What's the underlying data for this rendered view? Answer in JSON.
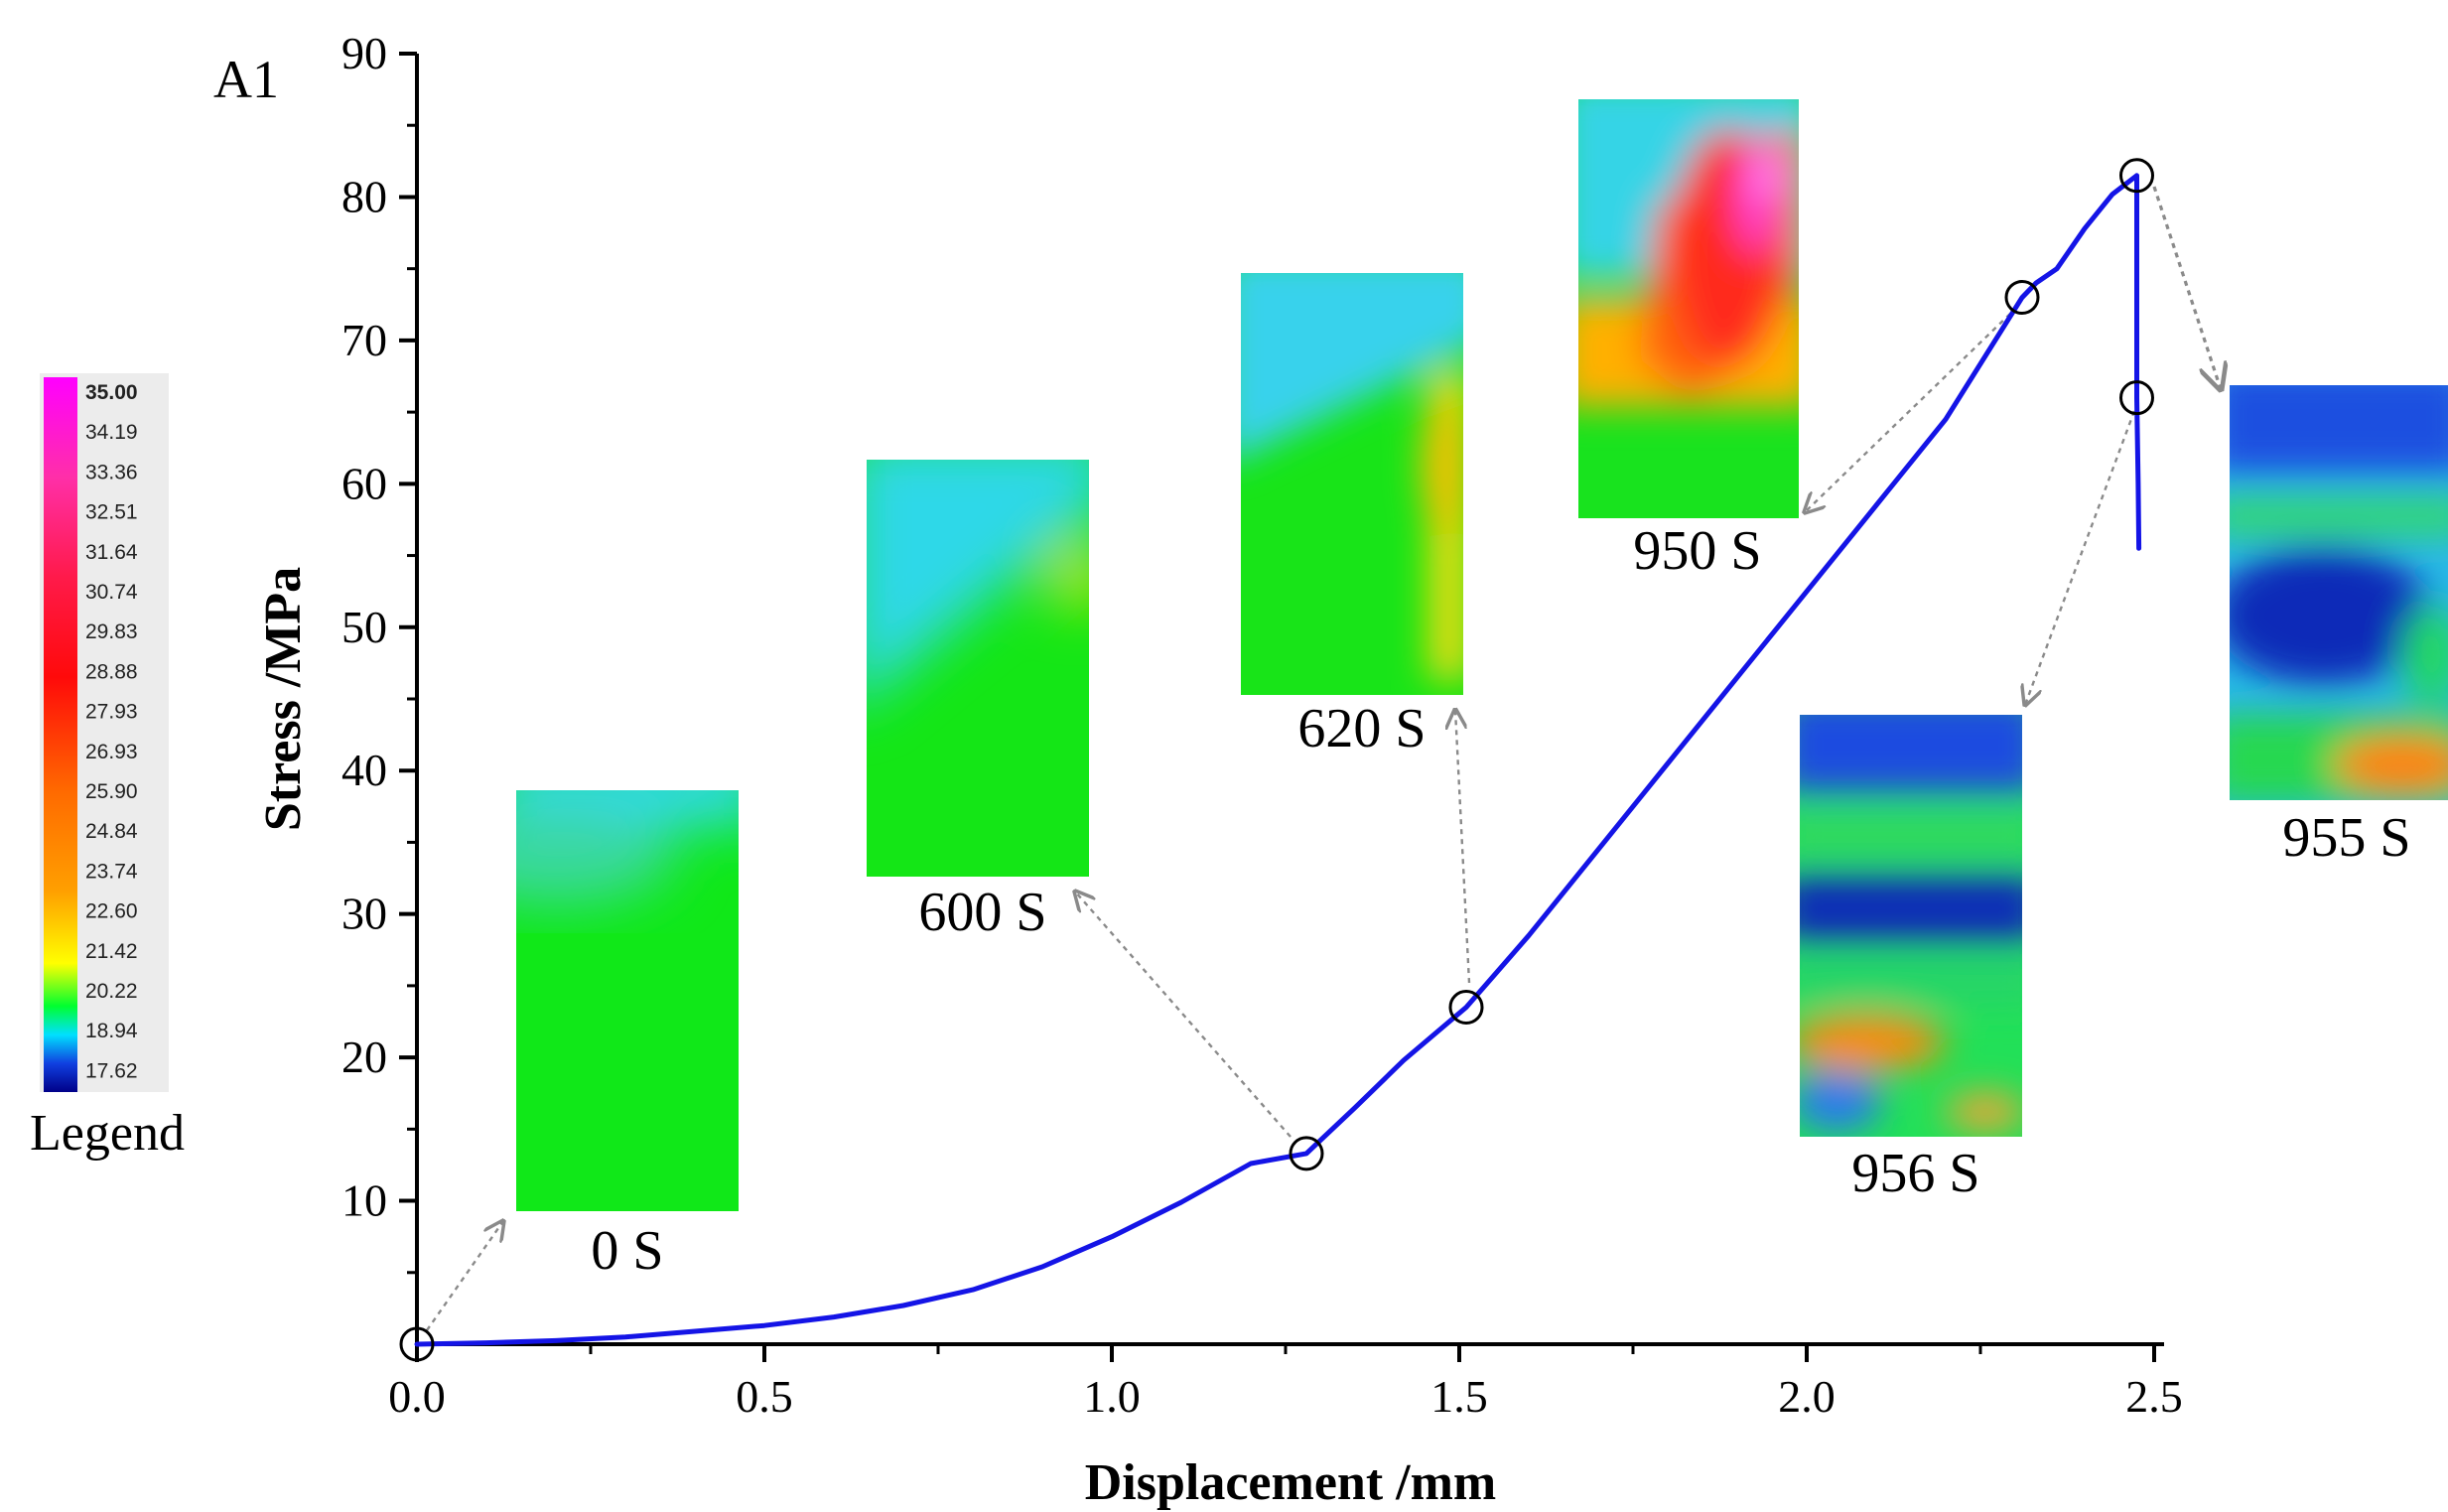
{
  "chart_data": {
    "type": "line",
    "panel_label": "A1",
    "xlabel": "Displacement /mm",
    "ylabel": "Stress /MPa",
    "xlim": [
      0,
      2.5
    ],
    "ylim": [
      0,
      90
    ],
    "xticks": [
      {
        "value": 0.0,
        "label": "0.0"
      },
      {
        "value": 0.5,
        "label": "0.5"
      },
      {
        "value": 1.0,
        "label": "1.0"
      },
      {
        "value": 1.5,
        "label": "1.5"
      },
      {
        "value": 2.0,
        "label": "2.0"
      },
      {
        "value": 2.5,
        "label": "2.5"
      }
    ],
    "yticks": [
      {
        "value": 10,
        "label": "10"
      },
      {
        "value": 20,
        "label": "20"
      },
      {
        "value": 30,
        "label": "30"
      },
      {
        "value": 40,
        "label": "40"
      },
      {
        "value": 50,
        "label": "50"
      },
      {
        "value": 60,
        "label": "60"
      },
      {
        "value": 70,
        "label": "70"
      },
      {
        "value": 80,
        "label": "80"
      },
      {
        "value": 90,
        "label": "90"
      }
    ],
    "series": [
      {
        "color": "#1414e6",
        "x": [
          0.0,
          0.1,
          0.2,
          0.3,
          0.4,
          0.5,
          0.6,
          0.7,
          0.8,
          0.9,
          1.0,
          1.1,
          1.2,
          1.28,
          1.35,
          1.42,
          1.51,
          1.6,
          1.7,
          1.8,
          1.9,
          2.0,
          2.1,
          2.2,
          2.31,
          2.33,
          2.36,
          2.4,
          2.44,
          2.475,
          2.475,
          2.477,
          2.478
        ],
        "y": [
          0.0,
          0.1,
          0.25,
          0.5,
          0.9,
          1.3,
          1.9,
          2.7,
          3.8,
          5.4,
          7.5,
          9.9,
          12.6,
          13.3,
          16.5,
          19.8,
          23.5,
          28.5,
          34.5,
          40.5,
          46.5,
          52.5,
          58.5,
          64.5,
          73.0,
          74.0,
          75.0,
          77.8,
          80.2,
          81.5,
          66.0,
          60.0,
          55.5
        ]
      }
    ],
    "marked_points": [
      {
        "x": 0.0,
        "y": 0.0
      },
      {
        "x": 1.28,
        "y": 13.3
      },
      {
        "x": 1.51,
        "y": 23.5
      },
      {
        "x": 2.31,
        "y": 73.0
      },
      {
        "x": 2.475,
        "y": 81.5
      },
      {
        "x": 2.475,
        "y": 66.0
      }
    ],
    "thermal_images": [
      {
        "label": "0 S"
      },
      {
        "label": "600 S"
      },
      {
        "label": "620 S"
      },
      {
        "label": "950 S"
      },
      {
        "label": "956 S"
      },
      {
        "label": "955 S"
      }
    ],
    "color_legend": {
      "title": "Legend",
      "values": [
        "35.00",
        "34.19",
        "33.36",
        "32.51",
        "31.64",
        "30.74",
        "29.83",
        "28.88",
        "27.93",
        "26.93",
        "25.90",
        "24.84",
        "23.74",
        "22.60",
        "21.42",
        "20.22",
        "18.94",
        "17.62"
      ]
    }
  }
}
